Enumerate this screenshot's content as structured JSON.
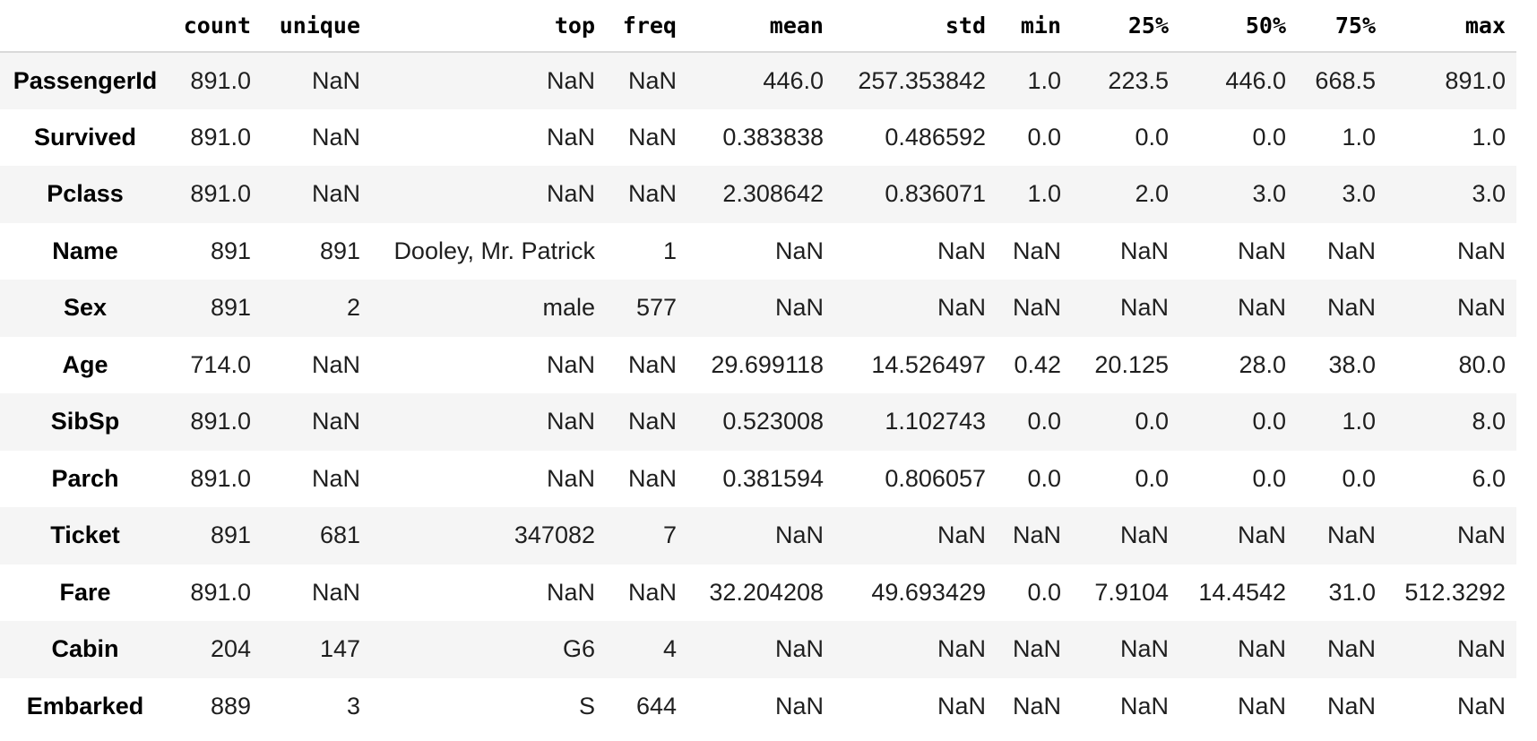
{
  "table": {
    "index_header": "",
    "columns": [
      "count",
      "unique",
      "top",
      "freq",
      "mean",
      "std",
      "min",
      "25%",
      "50%",
      "75%",
      "max"
    ],
    "rows": [
      {
        "label": "PassengerId",
        "cells": [
          "891.0",
          "NaN",
          "NaN",
          "NaN",
          "446.0",
          "257.353842",
          "1.0",
          "223.5",
          "446.0",
          "668.5",
          "891.0"
        ]
      },
      {
        "label": "Survived",
        "cells": [
          "891.0",
          "NaN",
          "NaN",
          "NaN",
          "0.383838",
          "0.486592",
          "0.0",
          "0.0",
          "0.0",
          "1.0",
          "1.0"
        ]
      },
      {
        "label": "Pclass",
        "cells": [
          "891.0",
          "NaN",
          "NaN",
          "NaN",
          "2.308642",
          "0.836071",
          "1.0",
          "2.0",
          "3.0",
          "3.0",
          "3.0"
        ]
      },
      {
        "label": "Name",
        "cells": [
          "891",
          "891",
          "Dooley, Mr. Patrick",
          "1",
          "NaN",
          "NaN",
          "NaN",
          "NaN",
          "NaN",
          "NaN",
          "NaN"
        ]
      },
      {
        "label": "Sex",
        "cells": [
          "891",
          "2",
          "male",
          "577",
          "NaN",
          "NaN",
          "NaN",
          "NaN",
          "NaN",
          "NaN",
          "NaN"
        ]
      },
      {
        "label": "Age",
        "cells": [
          "714.0",
          "NaN",
          "NaN",
          "NaN",
          "29.699118",
          "14.526497",
          "0.42",
          "20.125",
          "28.0",
          "38.0",
          "80.0"
        ]
      },
      {
        "label": "SibSp",
        "cells": [
          "891.0",
          "NaN",
          "NaN",
          "NaN",
          "0.523008",
          "1.102743",
          "0.0",
          "0.0",
          "0.0",
          "1.0",
          "8.0"
        ]
      },
      {
        "label": "Parch",
        "cells": [
          "891.0",
          "NaN",
          "NaN",
          "NaN",
          "0.381594",
          "0.806057",
          "0.0",
          "0.0",
          "0.0",
          "0.0",
          "6.0"
        ]
      },
      {
        "label": "Ticket",
        "cells": [
          "891",
          "681",
          "347082",
          "7",
          "NaN",
          "NaN",
          "NaN",
          "NaN",
          "NaN",
          "NaN",
          "NaN"
        ]
      },
      {
        "label": "Fare",
        "cells": [
          "891.0",
          "NaN",
          "NaN",
          "NaN",
          "32.204208",
          "49.693429",
          "0.0",
          "7.9104",
          "14.4542",
          "31.0",
          "512.3292"
        ]
      },
      {
        "label": "Cabin",
        "cells": [
          "204",
          "147",
          "G6",
          "4",
          "NaN",
          "NaN",
          "NaN",
          "NaN",
          "NaN",
          "NaN",
          "NaN"
        ]
      },
      {
        "label": "Embarked",
        "cells": [
          "889",
          "3",
          "S",
          "644",
          "NaN",
          "NaN",
          "NaN",
          "NaN",
          "NaN",
          "NaN",
          "NaN"
        ]
      }
    ]
  }
}
